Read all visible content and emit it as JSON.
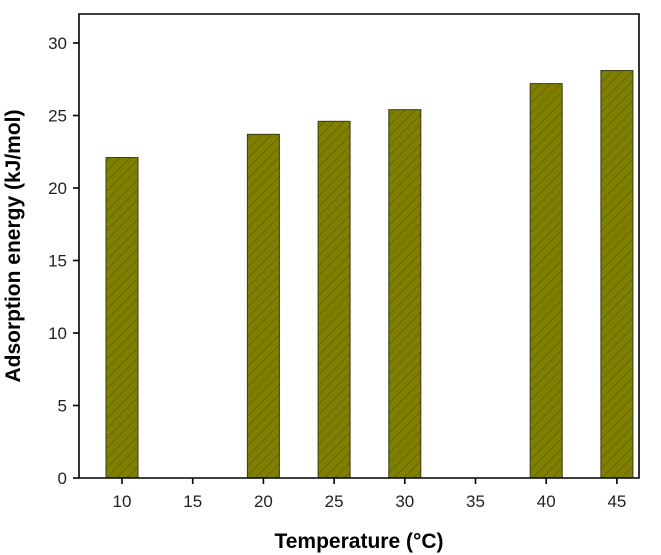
{
  "chart_data": {
    "type": "bar",
    "categories": [
      "10",
      "15",
      "20",
      "25",
      "30",
      "35",
      "40",
      "45"
    ],
    "values": [
      22.1,
      null,
      23.7,
      24.6,
      25.4,
      null,
      27.2,
      28.1
    ],
    "title": "",
    "xlabel": "Temperature (°C)",
    "ylabel": "Adsorption energy (kJ/mol)",
    "ylim": [
      0,
      32
    ],
    "yticks": [
      0,
      5,
      10,
      15,
      20,
      25,
      30
    ],
    "grid": false,
    "bar_color": "#808000",
    "bar_pattern": "diagonal-hatch"
  }
}
